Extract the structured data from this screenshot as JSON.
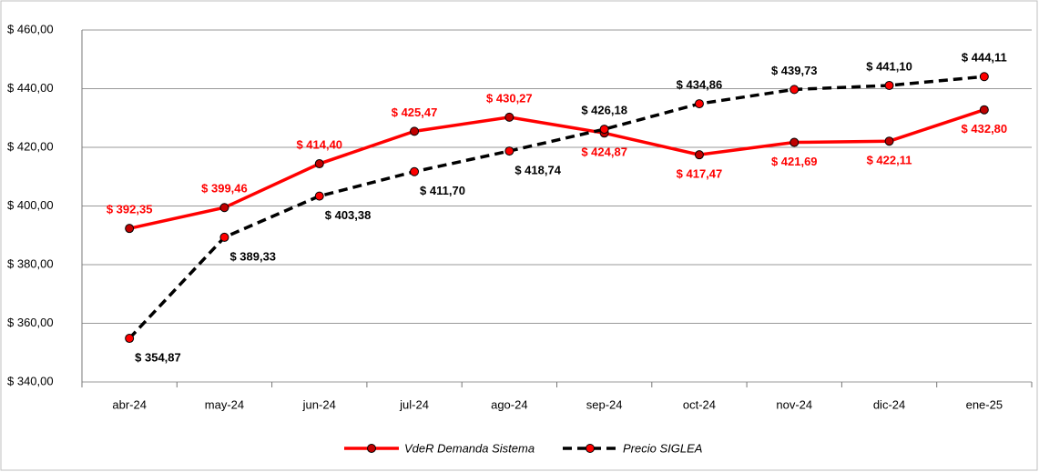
{
  "chart_data": {
    "type": "line",
    "categories": [
      "abr-24",
      "may-24",
      "jun-24",
      "jul-24",
      "ago-24",
      "sep-24",
      "oct-24",
      "nov-24",
      "dic-24",
      "ene-25"
    ],
    "series": [
      {
        "name": "VdeR Demanda Sistema",
        "color": "#ff0000",
        "marker_color": "#c00000",
        "line_style": "solid",
        "values": [
          392.35,
          399.46,
          414.4,
          425.47,
          430.27,
          424.87,
          417.47,
          421.69,
          422.11,
          432.8
        ],
        "value_labels": [
          "$ 392,35",
          "$ 399,46",
          "$ 414,40",
          "$ 425,47",
          "$ 430,27",
          "$ 424,87",
          "$ 417,47",
          "$ 421,69",
          "$ 422,11",
          "$ 432,80"
        ]
      },
      {
        "name": "Precio SIGLEA",
        "color": "#000000",
        "marker_color": "#ff0000",
        "line_style": "dashed",
        "values": [
          354.87,
          389.33,
          403.38,
          411.7,
          418.74,
          426.18,
          434.86,
          439.73,
          441.1,
          444.11
        ],
        "value_labels": [
          "$ 354,87",
          "$ 389,33",
          "$ 403,38",
          "$ 411,70",
          "$ 418,74",
          "$ 426,18",
          "$ 434,86",
          "$ 439,73",
          "$ 441,10",
          "$ 444,11"
        ]
      }
    ],
    "ylim": [
      340,
      460
    ],
    "yticks": [
      {
        "value": 340,
        "label": "$ 340,00"
      },
      {
        "value": 360,
        "label": "$ 360,00"
      },
      {
        "value": 380,
        "label": "$ 380,00"
      },
      {
        "value": 400,
        "label": "$ 400,00"
      },
      {
        "value": 420,
        "label": "$ 420,00"
      },
      {
        "value": 440,
        "label": "$ 440,00"
      },
      {
        "value": 460,
        "label": "$ 460,00"
      }
    ],
    "grid": true,
    "legend": "bottom"
  }
}
